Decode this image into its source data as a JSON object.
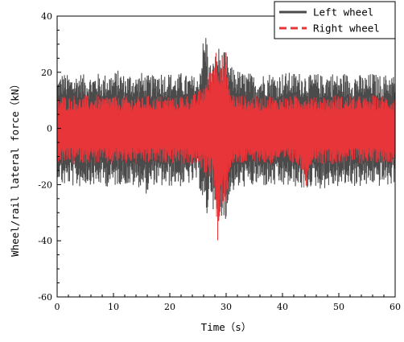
{
  "chart_data": {
    "type": "line",
    "xlabel": "Time（s）",
    "ylabel": "Wheel/rail lateral force（kN）",
    "xlim": [
      0,
      60
    ],
    "ylim": [
      -60,
      40
    ],
    "x_ticks": [
      "0",
      "10",
      "20",
      "30",
      "40",
      "50",
      "60"
    ],
    "y_ticks": [
      "40",
      "20",
      "0",
      "-20",
      "-40",
      "-60"
    ],
    "grid": false,
    "legend_position": "top-right",
    "x_sample_step": 0.1,
    "series": [
      {
        "name": "Left wheel",
        "color": "#4b4b4b",
        "line_style": "solid",
        "segments": [
          [
            0,
            -17,
            18
          ],
          [
            1,
            -21,
            20
          ],
          [
            2,
            -20,
            19
          ],
          [
            3,
            -21,
            19
          ],
          [
            4,
            -21,
            20
          ],
          [
            5,
            -20,
            19
          ],
          [
            6,
            -20,
            19
          ],
          [
            7,
            -21,
            20
          ],
          [
            8,
            -20,
            19
          ],
          [
            9,
            -21,
            20
          ],
          [
            10,
            -21,
            20
          ],
          [
            11,
            -20,
            21
          ],
          [
            12,
            -20,
            19
          ],
          [
            13,
            -21,
            20
          ],
          [
            14,
            -21,
            19
          ],
          [
            15,
            -21,
            20
          ],
          [
            16,
            -24,
            19
          ],
          [
            17,
            -20,
            19
          ],
          [
            18,
            -21,
            21
          ],
          [
            19,
            -21,
            20
          ],
          [
            20,
            -21,
            20
          ],
          [
            21,
            -20,
            19
          ],
          [
            22,
            -21,
            20
          ],
          [
            23,
            -20,
            19
          ],
          [
            24,
            -20,
            19
          ],
          [
            25,
            -19,
            18
          ],
          [
            26,
            -28,
            33
          ],
          [
            26.5,
            -35,
            35
          ],
          [
            27,
            -23,
            24
          ],
          [
            27.5,
            -24,
            23
          ],
          [
            28,
            -36,
            26
          ],
          [
            28.5,
            -33,
            30
          ],
          [
            29,
            -32,
            28
          ],
          [
            29.5,
            -30,
            27
          ],
          [
            30,
            -37,
            28
          ],
          [
            30.5,
            -24,
            23
          ],
          [
            31,
            -23,
            22
          ],
          [
            32,
            -22,
            21
          ],
          [
            33,
            -21,
            20
          ],
          [
            34,
            -21,
            20
          ],
          [
            35,
            -21,
            19
          ],
          [
            36,
            -20,
            19
          ],
          [
            37,
            -21,
            20
          ],
          [
            38,
            -21,
            20
          ],
          [
            39,
            -21,
            19
          ],
          [
            40,
            -21,
            20
          ],
          [
            41,
            -21,
            20
          ],
          [
            42,
            -21,
            20
          ],
          [
            43,
            -21,
            20
          ],
          [
            44,
            -23,
            20
          ],
          [
            45,
            -21,
            19
          ],
          [
            46,
            -21,
            20
          ],
          [
            47,
            -22,
            19
          ],
          [
            48,
            -21,
            20
          ],
          [
            49,
            -21,
            20
          ],
          [
            50,
            -21,
            19
          ],
          [
            51,
            -21,
            20
          ],
          [
            52,
            -20,
            19
          ],
          [
            53,
            -21,
            20
          ],
          [
            54,
            -21,
            19
          ],
          [
            55,
            -21,
            19
          ],
          [
            56,
            -20,
            20
          ],
          [
            57,
            -21,
            19
          ],
          [
            58,
            -20,
            19
          ],
          [
            59,
            -21,
            20
          ],
          [
            60,
            -19,
            19
          ]
        ]
      },
      {
        "name": "Right wheel",
        "color": "#e8353a",
        "line_style": "dashed",
        "segments": [
          [
            0,
            -12,
            11
          ],
          [
            1,
            -13,
            12
          ],
          [
            2,
            -12,
            11
          ],
          [
            3,
            -13,
            12
          ],
          [
            4,
            -12,
            11
          ],
          [
            5,
            -13,
            12
          ],
          [
            6,
            -12,
            11
          ],
          [
            7,
            -13,
            12
          ],
          [
            8,
            -12,
            11
          ],
          [
            9,
            -13,
            12
          ],
          [
            10,
            -13,
            12
          ],
          [
            11,
            -12,
            11
          ],
          [
            12,
            -13,
            12
          ],
          [
            13,
            -12,
            11
          ],
          [
            14,
            -13,
            12
          ],
          [
            15,
            -12,
            11
          ],
          [
            16,
            -13,
            12
          ],
          [
            17,
            -12,
            11
          ],
          [
            18,
            -13,
            12
          ],
          [
            19,
            -12,
            11
          ],
          [
            20,
            -13,
            12
          ],
          [
            21,
            -12,
            11
          ],
          [
            22,
            -13,
            12
          ],
          [
            23,
            -13,
            12
          ],
          [
            24,
            -13,
            12
          ],
          [
            25,
            -14,
            13
          ],
          [
            26,
            -16,
            16
          ],
          [
            26.5,
            -18,
            18
          ],
          [
            27,
            -16,
            20
          ],
          [
            27.5,
            -20,
            24
          ],
          [
            28,
            -22,
            29
          ],
          [
            28.5,
            -51,
            29
          ],
          [
            29,
            -30,
            28
          ],
          [
            29.5,
            -26,
            25
          ],
          [
            30,
            -28,
            28
          ],
          [
            30.5,
            -16,
            15
          ],
          [
            31,
            -14,
            13
          ],
          [
            32,
            -13,
            12
          ],
          [
            33,
            -13,
            12
          ],
          [
            34,
            -12,
            11
          ],
          [
            35,
            -13,
            12
          ],
          [
            36,
            -12,
            11
          ],
          [
            37,
            -13,
            12
          ],
          [
            38,
            -13,
            12
          ],
          [
            39,
            -12,
            11
          ],
          [
            40,
            -13,
            12
          ],
          [
            41,
            -12,
            11
          ],
          [
            42,
            -13,
            12
          ],
          [
            43,
            -13,
            12
          ],
          [
            44,
            -23,
            12
          ],
          [
            45,
            -13,
            12
          ],
          [
            46,
            -12,
            11
          ],
          [
            47,
            -13,
            12
          ],
          [
            48,
            -12,
            11
          ],
          [
            49,
            -13,
            12
          ],
          [
            50,
            -13,
            12
          ],
          [
            51,
            -12,
            11
          ],
          [
            52,
            -13,
            12
          ],
          [
            53,
            -12,
            11
          ],
          [
            54,
            -13,
            12
          ],
          [
            55,
            -12,
            11
          ],
          [
            56,
            -13,
            12
          ],
          [
            57,
            -12,
            11
          ],
          [
            58,
            -13,
            12
          ],
          [
            59,
            -12,
            11
          ],
          [
            60,
            -12,
            11
          ]
        ]
      }
    ]
  }
}
